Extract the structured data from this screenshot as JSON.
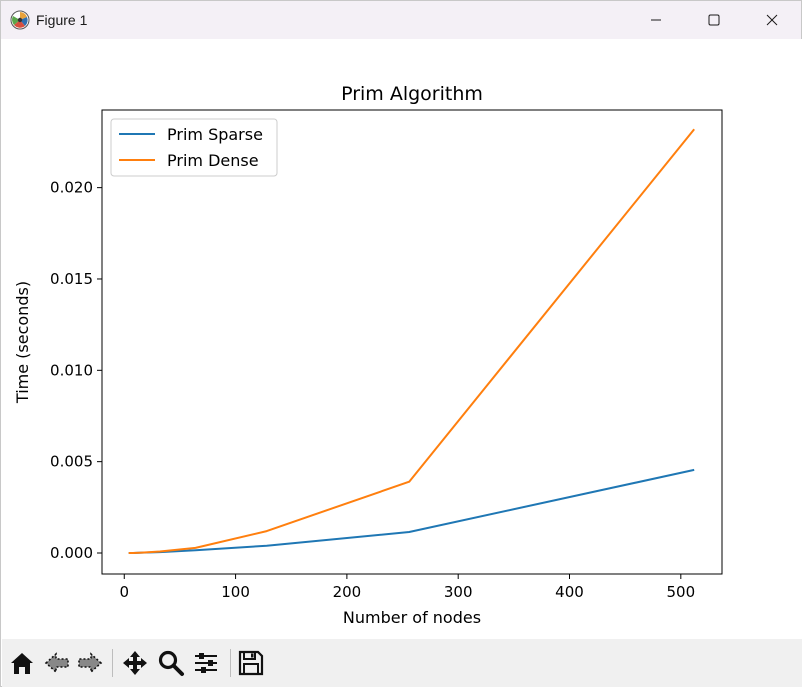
{
  "window": {
    "title": "Figure 1",
    "icons": {
      "app": "matplotlib-icon",
      "minimize": "minimize-icon",
      "maximize": "maximize-icon",
      "close": "close-icon"
    }
  },
  "toolbar": {
    "buttons": [
      "home-icon",
      "back-arrow-icon",
      "forward-arrow-icon",
      "pan-icon",
      "zoom-icon",
      "configure-subplots-icon",
      "save-icon"
    ]
  },
  "colors": {
    "series1": "#1f77b4",
    "series2": "#ff7f0e"
  },
  "chart_data": {
    "type": "line",
    "title": "Prim Algorithm",
    "xlabel": "Number of nodes",
    "ylabel": "Time (seconds)",
    "xlim": [
      -20,
      537
    ],
    "ylim": [
      -0.00115,
      0.02425
    ],
    "xticks": [
      0,
      100,
      200,
      300,
      400,
      500
    ],
    "xtick_labels": [
      "0",
      "100",
      "200",
      "300",
      "400",
      "500"
    ],
    "yticks": [
      0.0,
      0.005,
      0.01,
      0.015,
      0.02
    ],
    "ytick_labels": [
      "0.000",
      "0.005",
      "0.010",
      "0.015",
      "0.020"
    ],
    "grid": false,
    "legend": "upper-left",
    "series": [
      {
        "name": "Prim Sparse",
        "x": [
          4,
          8,
          16,
          32,
          64,
          128,
          256,
          512
        ],
        "y": [
          0.0,
          0.0,
          2e-05,
          5e-05,
          0.00015,
          0.0004,
          0.00115,
          0.00455
        ]
      },
      {
        "name": "Prim Dense",
        "x": [
          4,
          8,
          16,
          32,
          64,
          128,
          256,
          512
        ],
        "y": [
          0.0,
          0.0,
          2e-05,
          8e-05,
          0.00028,
          0.0012,
          0.0039,
          0.0232
        ]
      }
    ]
  }
}
